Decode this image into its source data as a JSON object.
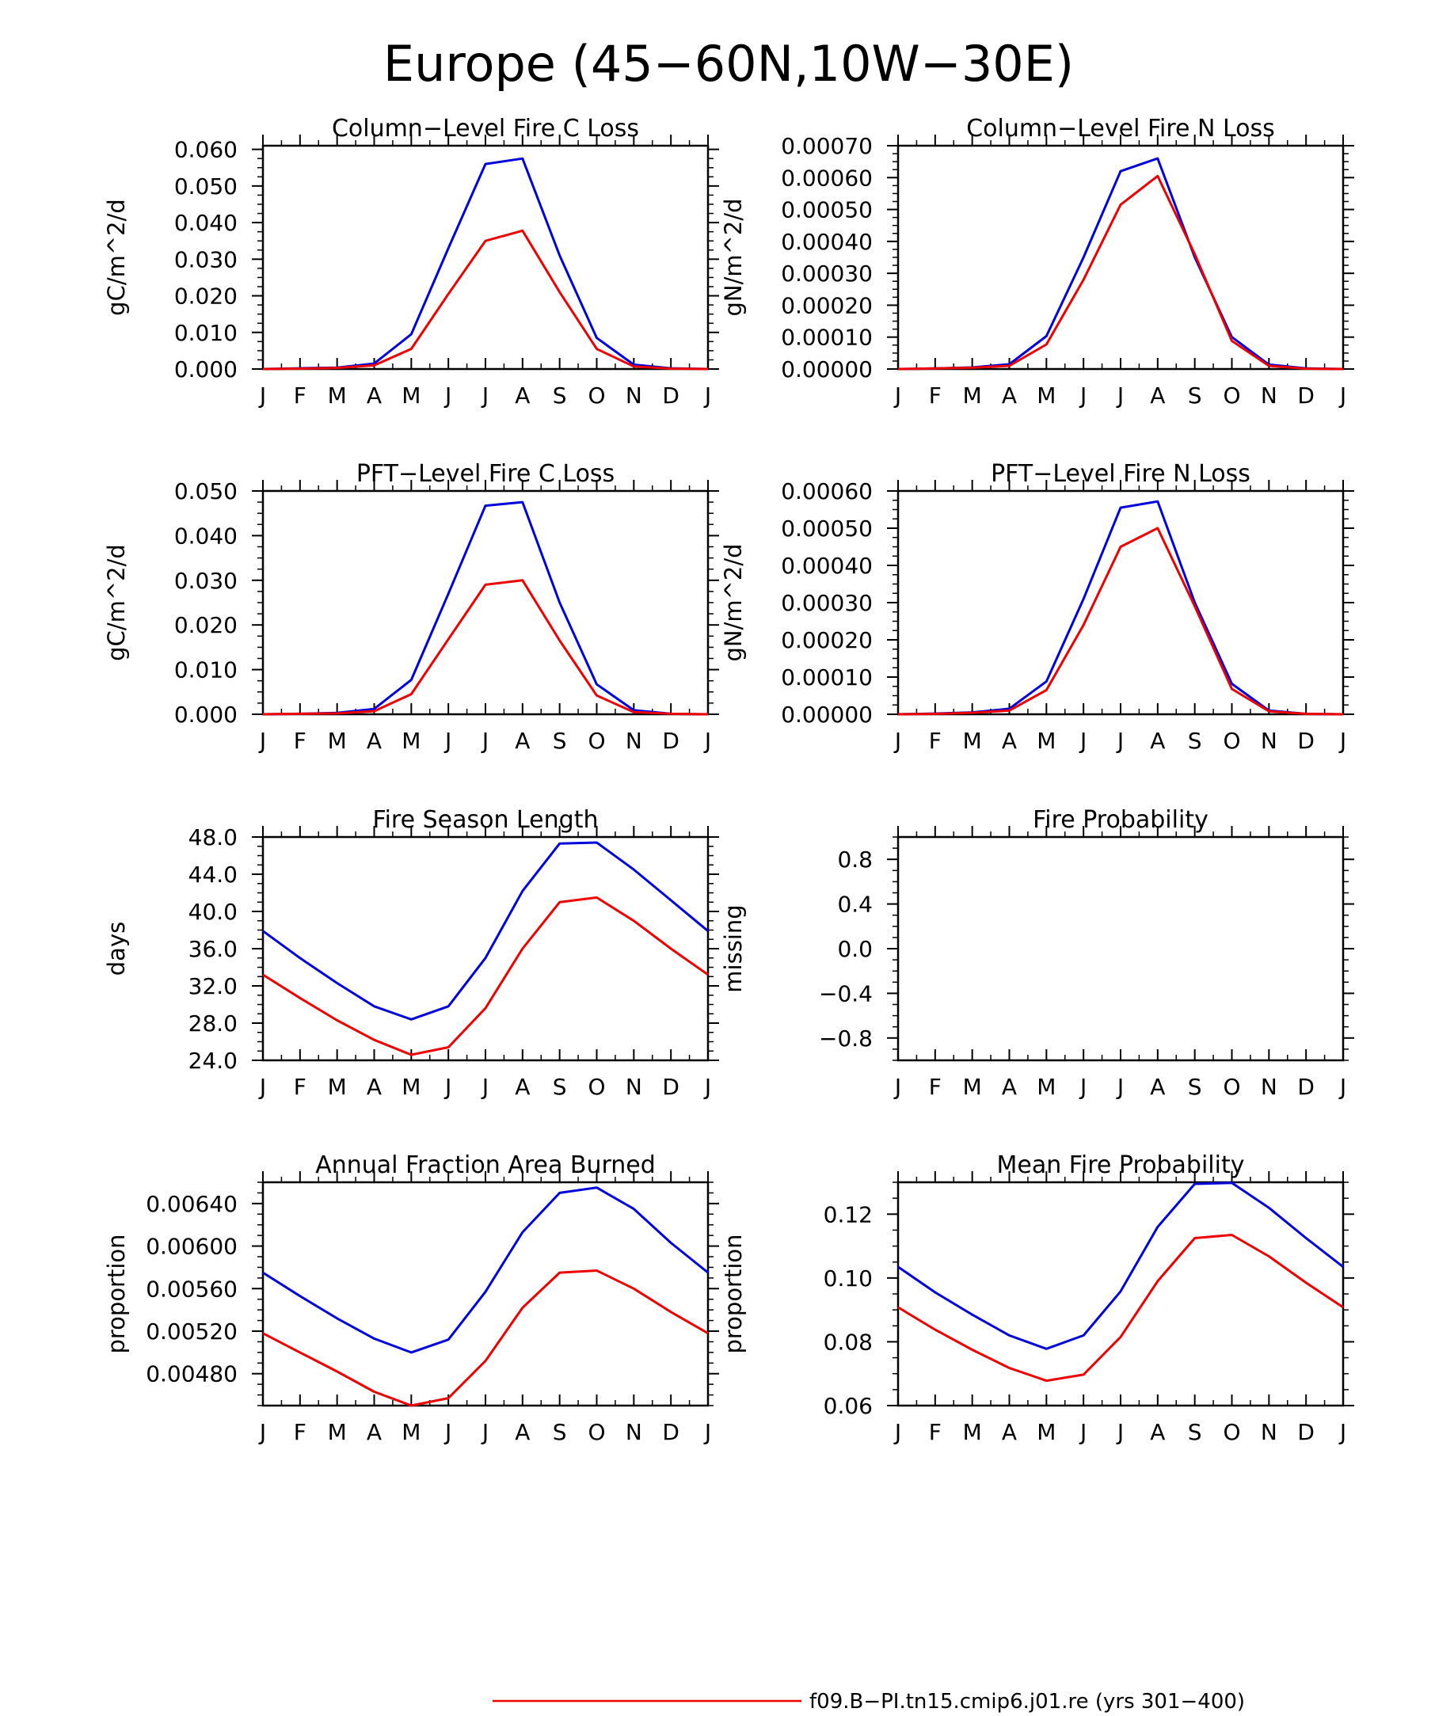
{
  "figure": {
    "title": "Europe (45−60N,10W−30E)"
  },
  "legend": {
    "entries": [
      {
        "label": "f09.B−PI.tn15.cmip6.j01.re (yrs 301−400)",
        "color": "#ee0000"
      }
    ]
  },
  "colors": {
    "series_blue": "#0000dd",
    "series_red": "#ee0000",
    "axes": "#000000"
  },
  "chart_data": [
    {
      "type": "line",
      "title": "Column−Level Fire C Loss",
      "ylabel": "gC/m^2/d",
      "xticks": [
        "J",
        "F",
        "M",
        "A",
        "M",
        "J",
        "J",
        "A",
        "S",
        "O",
        "N",
        "D",
        "J"
      ],
      "yticks": [
        "0.000",
        "0.010",
        "0.020",
        "0.030",
        "0.040",
        "0.050",
        "0.060"
      ],
      "ylim": [
        0,
        0.061
      ],
      "grid": false,
      "series": [
        {
          "color": "#0000dd",
          "values": [
            0,
            0.0002,
            0.0004,
            0.0015,
            0.0095,
            0.033,
            0.056,
            0.0575,
            0.031,
            0.0085,
            0.0012,
            0.0002,
            0
          ]
        },
        {
          "color": "#ee0000",
          "values": [
            0,
            0.0001,
            0.0003,
            0.001,
            0.0055,
            0.0205,
            0.035,
            0.0378,
            0.021,
            0.0055,
            0.0007,
            0.0001,
            0
          ]
        }
      ]
    },
    {
      "type": "line",
      "title": "Column−Level Fire N Loss",
      "ylabel": "gN/m^2/d",
      "xticks": [
        "J",
        "F",
        "M",
        "A",
        "M",
        "J",
        "J",
        "A",
        "S",
        "O",
        "N",
        "D",
        "J"
      ],
      "yticks": [
        "0.00000",
        "0.00010",
        "0.00020",
        "0.00030",
        "0.00040",
        "0.00050",
        "0.00060",
        "0.00070"
      ],
      "ylim": [
        0,
        0.0007
      ],
      "grid": false,
      "series": [
        {
          "color": "#0000dd",
          "values": [
            0,
            2e-06,
            5e-06,
            1.5e-05,
            0.000103,
            0.00035,
            0.00062,
            0.00066,
            0.00035,
            0.0001,
            1.4e-05,
            2e-06,
            0
          ]
        },
        {
          "color": "#ee0000",
          "values": [
            0,
            2e-06,
            4e-06,
            1e-05,
            7.7e-05,
            0.00028,
            0.000515,
            0.000605,
            0.00036,
            8.8e-05,
            1e-05,
            1e-06,
            0
          ]
        }
      ]
    },
    {
      "type": "line",
      "title": "PFT−Level Fire C Loss",
      "ylabel": "gC/m^2/d",
      "xticks": [
        "J",
        "F",
        "M",
        "A",
        "M",
        "J",
        "J",
        "A",
        "S",
        "O",
        "N",
        "D",
        "J"
      ],
      "yticks": [
        "0.000",
        "0.010",
        "0.020",
        "0.030",
        "0.040",
        "0.050"
      ],
      "ylim": [
        0,
        0.05
      ],
      "grid": false,
      "series": [
        {
          "color": "#0000dd",
          "values": [
            0,
            0.0001,
            0.0003,
            0.0012,
            0.0077,
            0.027,
            0.0467,
            0.0475,
            0.025,
            0.0067,
            0.0009,
            0.0001,
            0
          ]
        },
        {
          "color": "#ee0000",
          "values": [
            0,
            0.0001,
            0.0002,
            0.0007,
            0.0045,
            0.0168,
            0.029,
            0.03,
            0.0165,
            0.0042,
            0.0005,
            0.0001,
            0
          ]
        }
      ]
    },
    {
      "type": "line",
      "title": "PFT−Level Fire N Loss",
      "ylabel": "gN/m^2/d",
      "xticks": [
        "J",
        "F",
        "M",
        "A",
        "M",
        "J",
        "J",
        "A",
        "S",
        "O",
        "N",
        "D",
        "J"
      ],
      "yticks": [
        "0.00000",
        "0.00010",
        "0.00020",
        "0.00030",
        "0.00040",
        "0.00050",
        "0.00060"
      ],
      "ylim": [
        0,
        0.0006
      ],
      "grid": false,
      "series": [
        {
          "color": "#0000dd",
          "values": [
            0,
            2e-06,
            5e-06,
            1.5e-05,
            8.8e-05,
            0.00031,
            0.000555,
            0.000572,
            0.0003,
            8.2e-05,
            1e-05,
            1e-06,
            0
          ]
        },
        {
          "color": "#ee0000",
          "values": [
            0,
            1e-06,
            4e-06,
            1e-05,
            6.5e-05,
            0.00024,
            0.00045,
            0.0005,
            0.00029,
            6.8e-05,
            8e-06,
            1e-06,
            0
          ]
        }
      ]
    },
    {
      "type": "line",
      "title": "Fire Season Length",
      "ylabel": "days",
      "xticks": [
        "J",
        "F",
        "M",
        "A",
        "M",
        "J",
        "J",
        "A",
        "S",
        "O",
        "N",
        "D",
        "J"
      ],
      "yticks": [
        "24.0",
        "28.0",
        "32.0",
        "36.0",
        "40.0",
        "44.0",
        "48.0"
      ],
      "ylim": [
        24,
        48
      ],
      "grid": false,
      "series": [
        {
          "color": "#0000dd",
          "values": [
            37.9,
            35,
            32.3,
            29.8,
            28.4,
            29.8,
            35,
            42.2,
            47.3,
            47.4,
            44.5,
            41.2,
            37.9
          ]
        },
        {
          "color": "#ee0000",
          "values": [
            33.2,
            30.7,
            28.3,
            26.2,
            24.6,
            25.4,
            29.6,
            36,
            41,
            41.5,
            39,
            36,
            33.2
          ]
        }
      ]
    },
    {
      "type": "line",
      "title": "Fire Probability",
      "ylabel": "missing",
      "xticks": [
        "J",
        "F",
        "M",
        "A",
        "M",
        "J",
        "J",
        "A",
        "S",
        "O",
        "N",
        "D",
        "J"
      ],
      "yticks": [
        "−0.8",
        "−0.4",
        "0.0",
        "0.4",
        "0.8"
      ],
      "ylim": [
        -1,
        1
      ],
      "grid": false,
      "series": []
    },
    {
      "type": "line",
      "title": "Annual Fraction Area Burned",
      "ylabel": "proportion",
      "xticks": [
        "J",
        "F",
        "M",
        "A",
        "M",
        "J",
        "J",
        "A",
        "S",
        "O",
        "N",
        "D",
        "J"
      ],
      "yticks": [
        "0.00480",
        "0.00520",
        "0.00560",
        "0.00600",
        "0.00640"
      ],
      "ylim": [
        0.0045,
        0.0066
      ],
      "grid": false,
      "series": [
        {
          "color": "#0000dd",
          "values": [
            0.00575,
            0.00553,
            0.00532,
            0.00513,
            0.005,
            0.00512,
            0.00557,
            0.00613,
            0.0065,
            0.00655,
            0.00635,
            0.00603,
            0.00575
          ]
        },
        {
          "color": "#ee0000",
          "values": [
            0.00518,
            0.005,
            0.00482,
            0.00463,
            0.0045,
            0.00457,
            0.00492,
            0.00542,
            0.00575,
            0.00577,
            0.0056,
            0.00538,
            0.00518
          ]
        }
      ]
    },
    {
      "type": "line",
      "title": "Mean Fire Probability",
      "ylabel": "proportion",
      "xticks": [
        "J",
        "F",
        "M",
        "A",
        "M",
        "J",
        "J",
        "A",
        "S",
        "O",
        "N",
        "D",
        "J"
      ],
      "yticks": [
        "0.06",
        "0.08",
        "0.10",
        "0.12"
      ],
      "ylim": [
        0.06,
        0.13
      ],
      "grid": false,
      "series": [
        {
          "color": "#0000dd",
          "values": [
            0.1035,
            0.0955,
            0.0885,
            0.082,
            0.0778,
            0.082,
            0.0958,
            0.116,
            0.1295,
            0.1298,
            0.122,
            0.1125,
            0.1035
          ]
        },
        {
          "color": "#ee0000",
          "values": [
            0.0908,
            0.0838,
            0.0775,
            0.0718,
            0.0678,
            0.0697,
            0.0815,
            0.099,
            0.1125,
            0.1135,
            0.1068,
            0.0985,
            0.0908
          ]
        }
      ]
    }
  ]
}
